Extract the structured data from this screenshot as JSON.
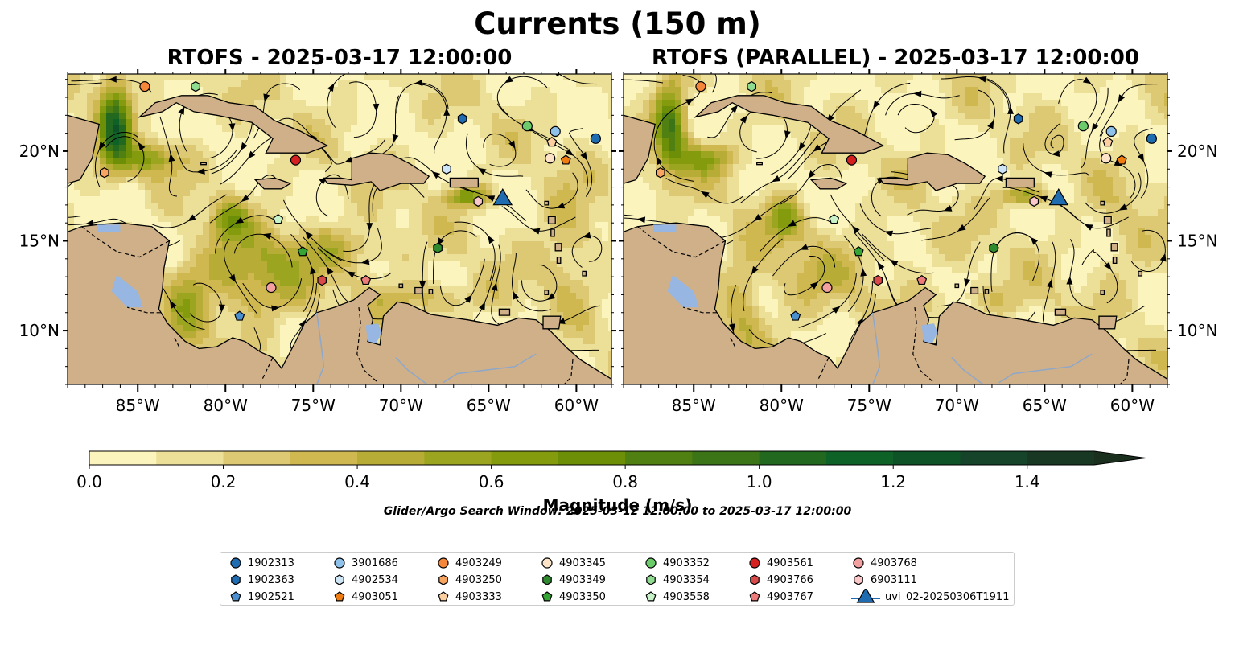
{
  "figure": {
    "title": "Currents (150 m)",
    "colorbar_label": "Magnitude (m/s)",
    "search_window": "Glider/Argo Search Window: 2025-03-12 12:00:00 to 2025-03-17 12:00:00"
  },
  "colors": {
    "ocean": "#97b6e1",
    "land": "#cfb089",
    "colormap": [
      "#fbf4bd",
      "#ecdf98",
      "#ddc873",
      "#cfb84f",
      "#b7ac35",
      "#9ca51f",
      "#849b0d",
      "#6c8f07",
      "#4f8011",
      "#3b7518",
      "#22691f",
      "#0e6127",
      "#0e5227",
      "#15442a",
      "#193824",
      "#1b2f1e"
    ]
  },
  "chart_data": {
    "type": "heatmap",
    "variable": "current magnitude with streamlines",
    "units": "m/s",
    "colorbar": {
      "ticks": [
        0.0,
        0.2,
        0.4,
        0.6,
        0.8,
        1.0,
        1.2,
        1.4
      ],
      "tick_labels": [
        "0.0",
        "0.2",
        "0.4",
        "0.6",
        "0.8",
        "1.0",
        "1.2",
        "1.4"
      ],
      "range": [
        0,
        1.5
      ],
      "step": 0.1,
      "extend": "max"
    },
    "lon_range": [
      -89.0,
      -58.0
    ],
    "lat_range": [
      7.0,
      24.3
    ],
    "x_ticks": [
      -85,
      -80,
      -75,
      -70,
      -65,
      -60
    ],
    "x_tick_labels": [
      "85°W",
      "80°W",
      "75°W",
      "70°W",
      "65°W",
      "60°W"
    ],
    "y_ticks": [
      10,
      15,
      20
    ],
    "y_tick_labels": [
      "10°N",
      "15°N",
      "20°N"
    ],
    "panels": [
      {
        "title": "RTOFS - 2025-03-17 12:00:00"
      },
      {
        "title": "RTOFS (PARALLEL) - 2025-03-17 12:00:00"
      }
    ],
    "platforms": [
      {
        "id": "1902313",
        "marker": "circle",
        "color": "#1f6cb0",
        "lon": -58.9,
        "lat": 20.7
      },
      {
        "id": "1902363",
        "marker": "hexagon",
        "color": "#1f6cb0",
        "lon": -66.5,
        "lat": 21.8
      },
      {
        "id": "1902521",
        "marker": "pentagon",
        "color": "#4a90d0",
        "lon": -79.2,
        "lat": 10.8
      },
      {
        "id": "3901686",
        "marker": "circle",
        "color": "#8ec2ea",
        "lon": -61.2,
        "lat": 21.1
      },
      {
        "id": "4902534",
        "marker": "hexagon",
        "color": "#cfe6f7",
        "lon": -67.4,
        "lat": 19.0
      },
      {
        "id": "4903051",
        "marker": "pentagon",
        "color": "#f07d12",
        "lon": -60.6,
        "lat": 19.5
      },
      {
        "id": "4903249",
        "marker": "circle",
        "color": "#f5873a",
        "lon": -84.6,
        "lat": 23.6
      },
      {
        "id": "4903250",
        "marker": "hexagon",
        "color": "#f7a561",
        "lon": -86.9,
        "lat": 18.8
      },
      {
        "id": "4903333",
        "marker": "pentagon",
        "color": "#fbcfa0",
        "lon": -61.4,
        "lat": 20.5
      },
      {
        "id": "4903345",
        "marker": "circle",
        "color": "#fde3c8",
        "lon": -61.5,
        "lat": 19.6
      },
      {
        "id": "4903349",
        "marker": "hexagon",
        "color": "#2f8a2f",
        "lon": -67.9,
        "lat": 14.6
      },
      {
        "id": "4903350",
        "marker": "pentagon",
        "color": "#35a535",
        "lon": -75.6,
        "lat": 14.4
      },
      {
        "id": "4903352",
        "marker": "circle",
        "color": "#6ccc6c",
        "lon": -62.8,
        "lat": 21.4
      },
      {
        "id": "4903354",
        "marker": "hexagon",
        "color": "#8fdb8f",
        "lon": -81.7,
        "lat": 23.6
      },
      {
        "id": "4903558",
        "marker": "pentagon",
        "color": "#c8f2c8",
        "lon": -77.0,
        "lat": 16.2
      },
      {
        "id": "4903561",
        "marker": "circle",
        "color": "#d62020",
        "lon": -76.0,
        "lat": 19.5
      },
      {
        "id": "4903766",
        "marker": "hexagon",
        "color": "#d94a4a",
        "lon": -74.5,
        "lat": 12.8
      },
      {
        "id": "4903767",
        "marker": "pentagon",
        "color": "#ec7b7b",
        "lon": -72.0,
        "lat": 12.8
      },
      {
        "id": "4903768",
        "marker": "circle",
        "color": "#f2a0a0",
        "lon": -77.4,
        "lat": 12.4
      },
      {
        "id": "6903111",
        "marker": "hexagon",
        "color": "#fac8c8",
        "lon": -65.6,
        "lat": 17.2
      },
      {
        "id": "uvi_02-20250306T1911",
        "marker": "triangle",
        "color": "#1f6cb0",
        "lon": -64.2,
        "lat": 17.3
      }
    ]
  }
}
